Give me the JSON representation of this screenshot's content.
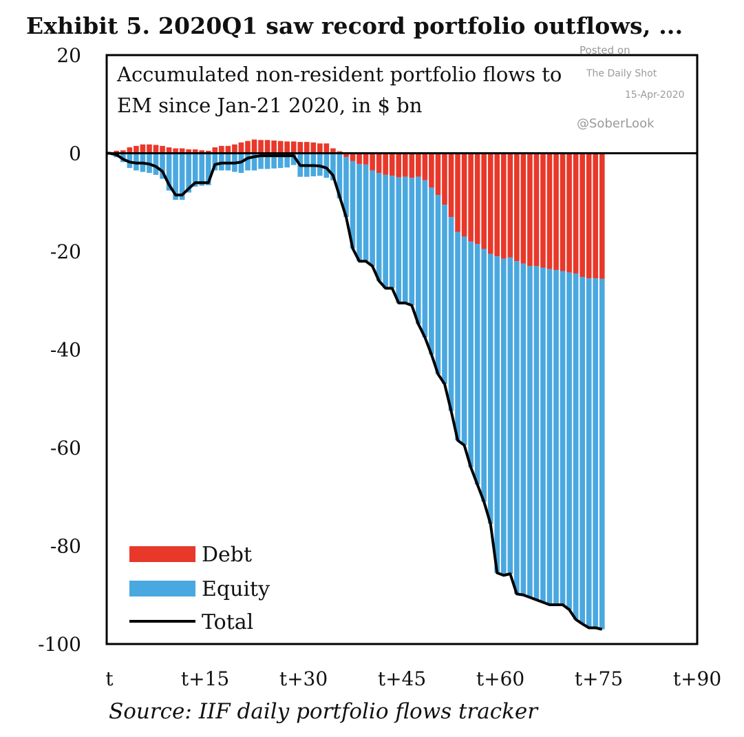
{
  "title": "Exhibit 5. 2020Q1 saw record portfolio outflows, ...",
  "source": "Source: IIF daily portfolio flows tracker",
  "watermark": {
    "posted": "Posted on",
    "outlet": "The Daily Shot",
    "date": "15-Apr-2020",
    "handle": "@SoberLook"
  },
  "colors": {
    "debt": "#e8382a",
    "equity": "#4aa8e0",
    "total": "#000000",
    "frame": "#000000"
  },
  "chart_data": {
    "type": "bar",
    "subtitle_lines": [
      "Accumulated non-resident portfolio flows to",
      "EM since Jan-21 2020, in $ bn"
    ],
    "xlim": [
      0,
      90
    ],
    "ylim": [
      -100,
      20
    ],
    "x_ticks": [
      {
        "value": 0,
        "label": "t"
      },
      {
        "value": 15,
        "label": "t+15"
      },
      {
        "value": 30,
        "label": "t+30"
      },
      {
        "value": 45,
        "label": "t+45"
      },
      {
        "value": 60,
        "label": "t+60"
      },
      {
        "value": 75,
        "label": "t+75"
      },
      {
        "value": 90,
        "label": "t+90"
      }
    ],
    "y_ticks": [
      {
        "value": 20,
        "label": "20"
      },
      {
        "value": 0,
        "label": "0"
      },
      {
        "value": -20,
        "label": "-20"
      },
      {
        "value": -40,
        "label": "-40"
      },
      {
        "value": -60,
        "label": "-60"
      },
      {
        "value": -80,
        "label": "-80"
      },
      {
        "value": -100,
        "label": "-100"
      }
    ],
    "legend": [
      {
        "name": "Debt",
        "type": "bar",
        "color": "#e8382a"
      },
      {
        "name": "Equity",
        "type": "bar",
        "color": "#4aa8e0"
      },
      {
        "name": "Total",
        "type": "line",
        "color": "#000000"
      }
    ],
    "legend_position": "bottom-left",
    "x": [
      1,
      2,
      3,
      4,
      5,
      6,
      7,
      8,
      9,
      10,
      11,
      12,
      13,
      14,
      15,
      16,
      17,
      18,
      19,
      20,
      21,
      22,
      23,
      24,
      25,
      26,
      27,
      28,
      29,
      30,
      31,
      32,
      33,
      34,
      35,
      36,
      37,
      38,
      39,
      40,
      41,
      42,
      43,
      44,
      45,
      46,
      47,
      48,
      49,
      50,
      51,
      52,
      53,
      54,
      55,
      56,
      57,
      58,
      59,
      60,
      61,
      62,
      63,
      64,
      65,
      66,
      67,
      68,
      69,
      70,
      71,
      72,
      73,
      74,
      75,
      76
    ],
    "series": [
      {
        "name": "Debt",
        "values": [
          0.2,
          0.5,
          0.6,
          1.2,
          1.5,
          1.8,
          1.8,
          1.7,
          1.5,
          1.2,
          1.0,
          1.0,
          0.8,
          0.8,
          0.6,
          0.5,
          1.2,
          1.5,
          1.5,
          1.8,
          2.2,
          2.5,
          2.8,
          2.7,
          2.7,
          2.6,
          2.5,
          2.4,
          2.4,
          2.3,
          2.3,
          2.2,
          2.0,
          2.0,
          1.0,
          0.4,
          -0.8,
          -1.6,
          -2.2,
          -2.3,
          -3.5,
          -4.0,
          -4.4,
          -4.6,
          -4.9,
          -4.8,
          -5.0,
          -4.8,
          -5.5,
          -7.0,
          -8.5,
          -10.5,
          -13.0,
          -16.0,
          -17.0,
          -18.0,
          -18.5,
          -19.5,
          -20.5,
          -21.0,
          -21.5,
          -21.2,
          -22.0,
          -22.5,
          -23.0,
          -23.0,
          -23.3,
          -23.6,
          -23.8,
          -24.0,
          -24.3,
          -24.5,
          -25.2,
          -25.5,
          -25.5,
          -25.6
        ]
      },
      {
        "name": "Equity",
        "values": [
          -0.2,
          -0.8,
          -1.8,
          -3.0,
          -3.5,
          -3.8,
          -4.0,
          -4.4,
          -5.2,
          -7.6,
          -9.5,
          -9.5,
          -8.0,
          -6.8,
          -6.6,
          -6.5,
          -3.5,
          -3.5,
          -3.5,
          -3.8,
          -4.0,
          -3.5,
          -3.5,
          -3.2,
          -3.2,
          -3.1,
          -3.0,
          -2.9,
          -2.4,
          -4.8,
          -4.8,
          -4.7,
          -4.6,
          -5.0,
          -5.5,
          -9.2,
          -12.2,
          -17.8,
          -19.8,
          -19.7,
          -19.5,
          -22.0,
          -23.1,
          -22.9,
          -25.6,
          -25.7,
          -26.0,
          -30.0,
          -32.0,
          -34.0,
          -36.5,
          -36.5,
          -39.5,
          -42.5,
          -42.5,
          -46.0,
          -49.0,
          -51.5,
          -55.0,
          -64.5,
          -64.5,
          -64.5,
          -67.8,
          -67.5,
          -67.5,
          -68.0,
          -68.2,
          -68.4,
          -68.2,
          -68.0,
          -68.7,
          -70.5,
          -70.7,
          -71.2,
          -71.2,
          -71.4
        ]
      },
      {
        "name": "Total",
        "values": [
          0,
          -0.3,
          -1.2,
          -1.8,
          -2.0,
          -2.0,
          -2.2,
          -2.7,
          -3.7,
          -6.4,
          -8.5,
          -8.5,
          -7.2,
          -6.0,
          -6.0,
          -6.0,
          -2.3,
          -2.0,
          -2.0,
          -2.0,
          -1.8,
          -1.0,
          -0.7,
          -0.5,
          -0.5,
          -0.5,
          -0.5,
          -0.5,
          -0.5,
          -2.5,
          -2.5,
          -2.5,
          -2.6,
          -3.0,
          -4.5,
          -8.8,
          -13.0,
          -19.4,
          -22.0,
          -22.0,
          -23.0,
          -26.0,
          -27.5,
          -27.5,
          -30.5,
          -30.5,
          -31.0,
          -34.8,
          -37.5,
          -41.0,
          -45.0,
          -47.0,
          -52.5,
          -58.5,
          -59.5,
          -64.0,
          -67.5,
          -71.0,
          -75.5,
          -85.5,
          -86.0,
          -85.7,
          -89.8,
          -90.0,
          -90.5,
          -91.0,
          -91.5,
          -92.0,
          -92.0,
          -92.0,
          -93.0,
          -95.0,
          -95.9,
          -96.7,
          -96.7,
          -97.0
        ]
      }
    ]
  }
}
